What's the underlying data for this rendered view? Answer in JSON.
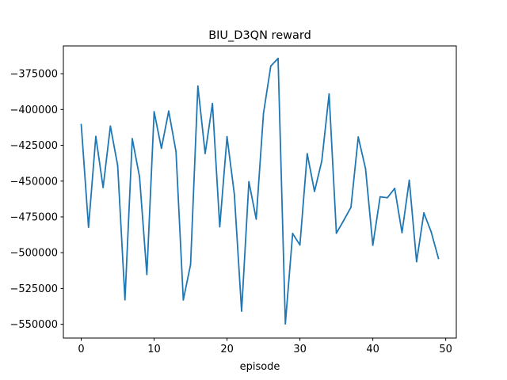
{
  "chart_data": {
    "type": "line",
    "title": "BIU_D3QN reward",
    "xlabel": "episode",
    "ylabel": "",
    "xlim": [
      -2.45,
      51.45
    ],
    "ylim": [
      -559600,
      -355600
    ],
    "xticks": [
      0,
      10,
      20,
      30,
      40,
      50
    ],
    "xtick_labels": [
      "0",
      "10",
      "20",
      "30",
      "40",
      "50"
    ],
    "yticks": [
      -550000,
      -525000,
      -500000,
      -475000,
      -450000,
      -425000,
      -400000,
      -375000
    ],
    "ytick_labels": [
      "−550000",
      "−525000",
      "−500000",
      "−475000",
      "−450000",
      "−425000",
      "−400000",
      "−375000"
    ],
    "grid": false,
    "series": [
      {
        "color": "#1f77b4",
        "x": [
          0,
          1,
          2,
          3,
          4,
          5,
          6,
          7,
          8,
          9,
          10,
          11,
          12,
          13,
          14,
          15,
          16,
          17,
          18,
          19,
          20,
          21,
          22,
          23,
          24,
          25,
          26,
          27,
          28,
          29,
          30,
          31,
          32,
          33,
          34,
          35,
          36,
          37,
          38,
          39,
          40,
          41,
          42,
          43,
          44,
          45,
          46,
          47,
          48,
          49
        ],
        "y": [
          -410600,
          -482200,
          -418800,
          -454500,
          -411600,
          -439200,
          -532900,
          -420400,
          -447100,
          -515200,
          -401600,
          -427100,
          -401100,
          -429400,
          -533000,
          -508200,
          -383600,
          -430700,
          -395800,
          -481900,
          -419000,
          -459000,
          -540800,
          -450400,
          -476600,
          -402700,
          -369700,
          -364300,
          -549700,
          -486600,
          -494600,
          -430900,
          -457200,
          -435900,
          -389100,
          -486400,
          -477500,
          -468300,
          -419200,
          -441300,
          -494800,
          -461000,
          -461600,
          -455100,
          -486000,
          -449400,
          -506300,
          -472200,
          -485400,
          -504000
        ]
      }
    ]
  }
}
